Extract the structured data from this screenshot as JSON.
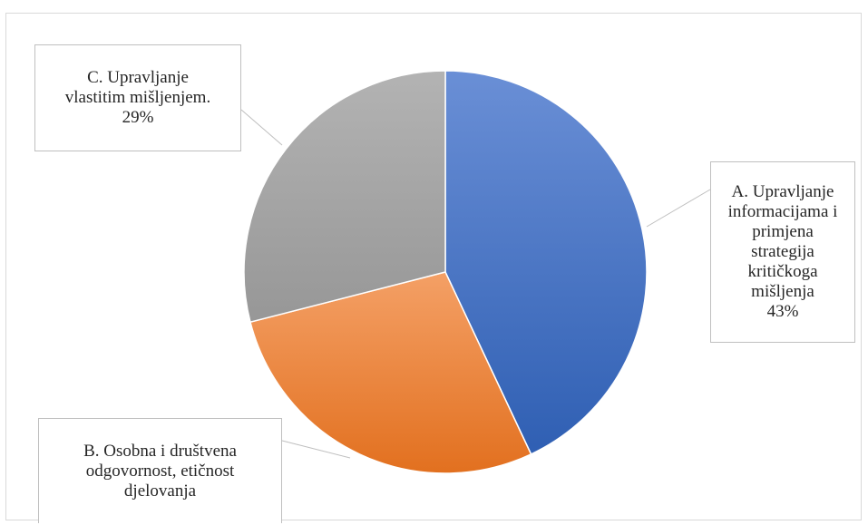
{
  "chart_data": {
    "type": "pie",
    "title": "",
    "start_angle_deg": 0,
    "direction": "clockwise",
    "slices": [
      {
        "label_lines": [
          "A. Upravljanje",
          "informacijama i",
          "primjena",
          "strategija",
          "kritičkoga",
          "mišljenja"
        ],
        "value": 43,
        "value_label": "43%",
        "color": "#4472c4",
        "color_light": "#6a8fd6",
        "color_dark": "#2f5fb3"
      },
      {
        "label_lines": [
          "B. Osobna i društvena",
          "odgovornost, etičnost",
          "djelovanja"
        ],
        "value": 28,
        "value_label": "",
        "color": "#ed7d31",
        "color_light": "#f4a066",
        "color_dark": "#e2701f"
      },
      {
        "label_lines": [
          "C. Upravljanje",
          "vlastitim mišljenjem."
        ],
        "value": 29,
        "value_label": "29%",
        "color": "#a5a5a5",
        "color_light": "#b3b3b3",
        "color_dark": "#979797"
      }
    ]
  }
}
